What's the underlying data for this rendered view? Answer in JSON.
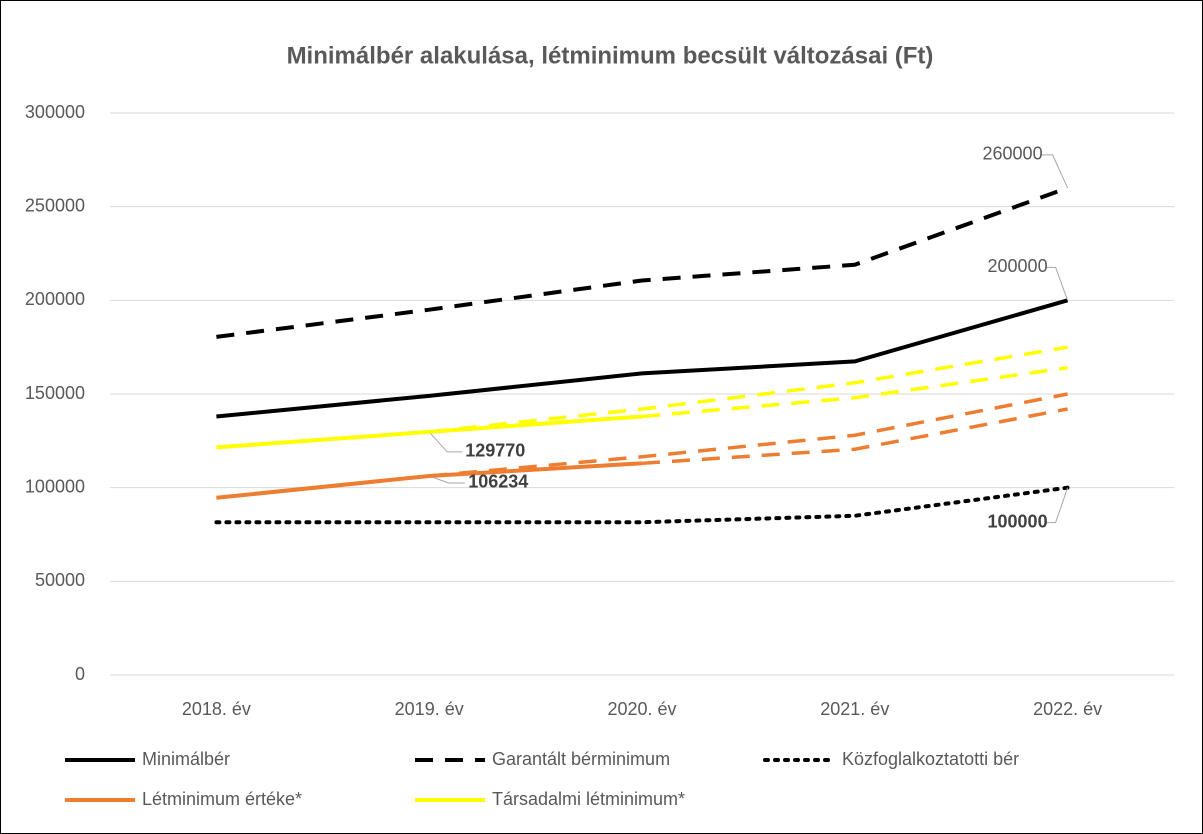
{
  "chart_data": {
    "type": "line",
    "title": "Minimálbér alakulása, létminimum becsült változásai (Ft)",
    "categories": [
      "2018. év",
      "2019. év",
      "2020. év",
      "2021. év",
      "2022. év"
    ],
    "ylim": [
      0,
      300000
    ],
    "yticks": [
      0,
      50000,
      100000,
      150000,
      200000,
      250000,
      300000
    ],
    "grid": true,
    "series": [
      {
        "name": "Minimálbér",
        "color": "#000000",
        "dash": "solid",
        "values": [
          138000,
          149000,
          161000,
          167400,
          200000
        ],
        "labeled": [
          4
        ]
      },
      {
        "name": "Garantált bérminimum",
        "color": "#000000",
        "dash": "dashed",
        "values": [
          180500,
          195000,
          210600,
          219000,
          260000
        ],
        "labeled": [
          4
        ]
      },
      {
        "name": "Közfoglalkoztatotti bér",
        "color": "#000000",
        "dash": "dotted",
        "values": [
          81530,
          81530,
          81530,
          85000,
          100000
        ],
        "labeled": [
          4
        ],
        "label_bold": true
      },
      {
        "name": "Létminimum értéke*",
        "color": "#ed7d31",
        "dash": "solid",
        "values": [
          94600,
          106234,
          113000,
          null,
          null
        ],
        "labeled": [
          1
        ],
        "label_bold": true
      },
      {
        "name": "Társadalmi létminimum*",
        "color": "#ffff00",
        "dash": "solid",
        "values": [
          121500,
          129770,
          138000,
          null,
          null
        ],
        "labeled": [
          1
        ],
        "label_bold": true
      },
      {
        "color": "#ed7d31",
        "dash": "dashed",
        "values": [
          null,
          106234,
          116500,
          128000,
          150000
        ]
      },
      {
        "color": "#ed7d31",
        "dash": "dashed",
        "values": [
          null,
          null,
          113000,
          120500,
          142000
        ]
      },
      {
        "color": "#ffff00",
        "dash": "dashed",
        "values": [
          null,
          129770,
          142000,
          156000,
          175000
        ]
      },
      {
        "color": "#ffff00",
        "dash": "dashed",
        "values": [
          null,
          null,
          138000,
          148000,
          164000
        ]
      }
    ]
  }
}
